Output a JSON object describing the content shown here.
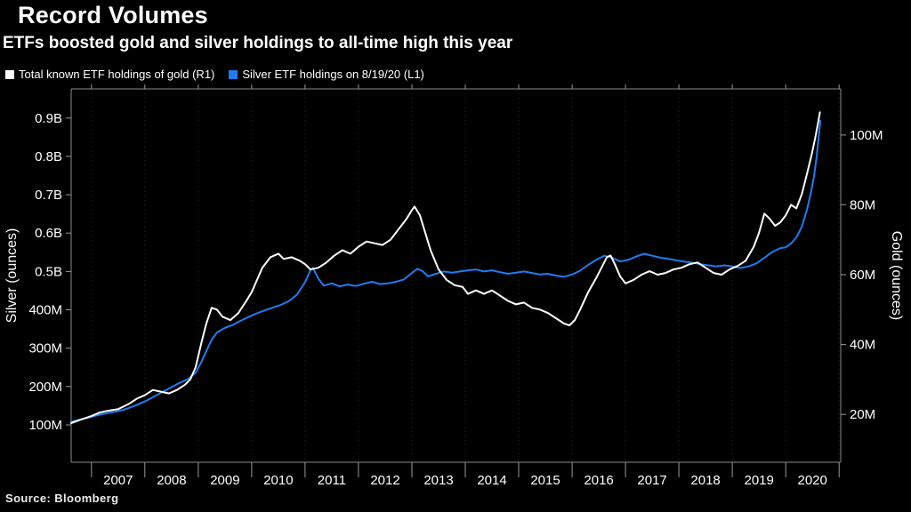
{
  "header": {
    "title": "Record Volumes",
    "subtitle": "ETFs boosted gold and silver holdings to all-time high this year"
  },
  "legend": {
    "items": [
      {
        "label": "Total known ETF holdings of gold (R1)",
        "color": "#ffffff"
      },
      {
        "label": "Silver ETF holdings on 8/19/20 (L1)",
        "color": "#1f7cf0"
      }
    ]
  },
  "footer": {
    "source": "Source: Bloomberg"
  },
  "colors": {
    "background": "#000000",
    "gold_line": "#ffffff",
    "silver_line": "#1f7cf0",
    "axis": "#8a8a8a"
  },
  "chart_data": {
    "type": "line",
    "title": "Record Volumes",
    "subtitle": "ETFs boosted gold and silver holdings to all-time high this year",
    "legend_position": "top-left",
    "grid": {
      "vertical": "dotted",
      "horizontal": "none"
    },
    "x_range": [
      2006.62,
      2021.03
    ],
    "x_axis": {
      "tick_years": [
        2007,
        2008,
        2009,
        2010,
        2011,
        2012,
        2013,
        2014,
        2015,
        2016,
        2017,
        2018,
        2019,
        2020,
        2021
      ],
      "labels": [
        "2007",
        "2008",
        "2009",
        "2010",
        "2011",
        "2012",
        "2013",
        "2014",
        "2015",
        "2016",
        "2017",
        "2018",
        "2019",
        "2020"
      ]
    },
    "left_axis": {
      "label": "Silver (ounces)",
      "unit": "million ounces of silver",
      "domain": [
        2.6,
        976
      ],
      "ticks": [
        {
          "value": 100,
          "label": "100M"
        },
        {
          "value": 200,
          "label": "200M"
        },
        {
          "value": 300,
          "label": "300M"
        },
        {
          "value": 400,
          "label": "400M"
        },
        {
          "value": 500,
          "label": "0.5B"
        },
        {
          "value": 600,
          "label": "0.6B"
        },
        {
          "value": 700,
          "label": "0.7B"
        },
        {
          "value": 800,
          "label": "0.8B"
        },
        {
          "value": 900,
          "label": "0.9B"
        }
      ]
    },
    "right_axis": {
      "label": "Gold (ounces)",
      "unit": "million ounces of gold",
      "domain": [
        6.3,
        113.2
      ],
      "ticks": [
        {
          "value": 20,
          "label": "20M"
        },
        {
          "value": 40,
          "label": "40M"
        },
        {
          "value": 60,
          "label": "60M"
        },
        {
          "value": 80,
          "label": "80M"
        },
        {
          "value": 100,
          "label": "100M"
        }
      ]
    },
    "series": [
      {
        "name": "Total known ETF holdings of gold (R1)",
        "axis": "right",
        "color": "#ffffff",
        "points": [
          [
            2006.62,
            17.5
          ],
          [
            2006.8,
            18.5
          ],
          [
            2007.0,
            19.5
          ],
          [
            2007.15,
            20.5
          ],
          [
            2007.3,
            21
          ],
          [
            2007.5,
            21.5
          ],
          [
            2007.7,
            23
          ],
          [
            2007.85,
            24.5
          ],
          [
            2008.0,
            25.5
          ],
          [
            2008.15,
            27
          ],
          [
            2008.3,
            26.5
          ],
          [
            2008.45,
            26
          ],
          [
            2008.6,
            27
          ],
          [
            2008.75,
            28.5
          ],
          [
            2008.85,
            30
          ],
          [
            2008.95,
            33.5
          ],
          [
            2009.05,
            40
          ],
          [
            2009.15,
            46
          ],
          [
            2009.25,
            50.5
          ],
          [
            2009.35,
            50
          ],
          [
            2009.45,
            48
          ],
          [
            2009.6,
            47
          ],
          [
            2009.75,
            49
          ],
          [
            2009.9,
            52.5
          ],
          [
            2010.0,
            55
          ],
          [
            2010.1,
            58.5
          ],
          [
            2010.2,
            62
          ],
          [
            2010.35,
            65
          ],
          [
            2010.5,
            66
          ],
          [
            2010.6,
            64.5
          ],
          [
            2010.75,
            65
          ],
          [
            2010.9,
            64
          ],
          [
            2011.0,
            63
          ],
          [
            2011.1,
            61.5
          ],
          [
            2011.25,
            62
          ],
          [
            2011.4,
            63.5
          ],
          [
            2011.55,
            65.5
          ],
          [
            2011.7,
            67
          ],
          [
            2011.85,
            66
          ],
          [
            2012.0,
            68
          ],
          [
            2012.15,
            69.5
          ],
          [
            2012.3,
            69
          ],
          [
            2012.45,
            68.5
          ],
          [
            2012.6,
            70
          ],
          [
            2012.75,
            73
          ],
          [
            2012.9,
            76
          ],
          [
            2013.0,
            78.5
          ],
          [
            2013.05,
            79.5
          ],
          [
            2013.15,
            77
          ],
          [
            2013.25,
            72
          ],
          [
            2013.35,
            67
          ],
          [
            2013.5,
            61.5
          ],
          [
            2013.65,
            58.5
          ],
          [
            2013.8,
            57
          ],
          [
            2013.95,
            56.5
          ],
          [
            2014.05,
            54.5
          ],
          [
            2014.2,
            55.5
          ],
          [
            2014.35,
            54.5
          ],
          [
            2014.5,
            55.5
          ],
          [
            2014.65,
            54
          ],
          [
            2014.8,
            52.5
          ],
          [
            2014.95,
            51.5
          ],
          [
            2015.1,
            52
          ],
          [
            2015.25,
            50.5
          ],
          [
            2015.4,
            50
          ],
          [
            2015.55,
            49
          ],
          [
            2015.7,
            47.5
          ],
          [
            2015.85,
            46
          ],
          [
            2015.95,
            45.5
          ],
          [
            2016.05,
            47
          ],
          [
            2016.15,
            50
          ],
          [
            2016.3,
            55
          ],
          [
            2016.45,
            59
          ],
          [
            2016.55,
            62
          ],
          [
            2016.65,
            65
          ],
          [
            2016.72,
            65.5
          ],
          [
            2016.8,
            63
          ],
          [
            2016.9,
            59.5
          ],
          [
            2017.0,
            57.5
          ],
          [
            2017.15,
            58.5
          ],
          [
            2017.3,
            60
          ],
          [
            2017.45,
            61
          ],
          [
            2017.6,
            60
          ],
          [
            2017.75,
            60.5
          ],
          [
            2017.9,
            61.5
          ],
          [
            2018.05,
            62
          ],
          [
            2018.2,
            63
          ],
          [
            2018.35,
            63.5
          ],
          [
            2018.5,
            62
          ],
          [
            2018.65,
            60.5
          ],
          [
            2018.8,
            60
          ],
          [
            2018.95,
            61.5
          ],
          [
            2019.1,
            62.5
          ],
          [
            2019.25,
            64
          ],
          [
            2019.4,
            68
          ],
          [
            2019.5,
            72
          ],
          [
            2019.6,
            77.5
          ],
          [
            2019.7,
            76
          ],
          [
            2019.8,
            74
          ],
          [
            2019.9,
            75
          ],
          [
            2020.0,
            77
          ],
          [
            2020.1,
            80
          ],
          [
            2020.2,
            79
          ],
          [
            2020.3,
            83
          ],
          [
            2020.4,
            89
          ],
          [
            2020.48,
            94
          ],
          [
            2020.55,
            99
          ],
          [
            2020.6,
            103
          ],
          [
            2020.64,
            106.5
          ]
        ]
      },
      {
        "name": "Silver ETF holdings on 8/19/20 (L1)",
        "axis": "left",
        "color": "#1f7cf0",
        "points": [
          [
            2006.62,
            108
          ],
          [
            2006.8,
            114
          ],
          [
            2007.0,
            121
          ],
          [
            2007.2,
            128
          ],
          [
            2007.4,
            133
          ],
          [
            2007.6,
            139
          ],
          [
            2007.8,
            149
          ],
          [
            2008.0,
            161
          ],
          [
            2008.2,
            176
          ],
          [
            2008.4,
            191
          ],
          [
            2008.6,
            206
          ],
          [
            2008.8,
            219
          ],
          [
            2008.95,
            236
          ],
          [
            2009.05,
            262
          ],
          [
            2009.15,
            292
          ],
          [
            2009.25,
            322
          ],
          [
            2009.35,
            341
          ],
          [
            2009.5,
            353
          ],
          [
            2009.65,
            361
          ],
          [
            2009.8,
            372
          ],
          [
            2009.95,
            382
          ],
          [
            2010.1,
            391
          ],
          [
            2010.25,
            399
          ],
          [
            2010.4,
            406
          ],
          [
            2010.55,
            413
          ],
          [
            2010.7,
            423
          ],
          [
            2010.85,
            440
          ],
          [
            2011.0,
            472
          ],
          [
            2011.1,
            503
          ],
          [
            2011.15,
            509
          ],
          [
            2011.25,
            481
          ],
          [
            2011.35,
            463
          ],
          [
            2011.5,
            469
          ],
          [
            2011.65,
            461
          ],
          [
            2011.8,
            466
          ],
          [
            2011.95,
            462
          ],
          [
            2012.1,
            468
          ],
          [
            2012.25,
            473
          ],
          [
            2012.4,
            467
          ],
          [
            2012.55,
            469
          ],
          [
            2012.7,
            473
          ],
          [
            2012.85,
            479
          ],
          [
            2013.0,
            496
          ],
          [
            2013.1,
            507
          ],
          [
            2013.2,
            501
          ],
          [
            2013.3,
            487
          ],
          [
            2013.45,
            494
          ],
          [
            2013.6,
            500
          ],
          [
            2013.75,
            497
          ],
          [
            2013.9,
            500
          ],
          [
            2014.05,
            503
          ],
          [
            2014.2,
            505
          ],
          [
            2014.35,
            500
          ],
          [
            2014.5,
            503
          ],
          [
            2014.65,
            498
          ],
          [
            2014.8,
            494
          ],
          [
            2014.95,
            497
          ],
          [
            2015.1,
            500
          ],
          [
            2015.25,
            496
          ],
          [
            2015.4,
            492
          ],
          [
            2015.55,
            494
          ],
          [
            2015.7,
            489
          ],
          [
            2015.85,
            486
          ],
          [
            2016.0,
            492
          ],
          [
            2016.15,
            502
          ],
          [
            2016.3,
            517
          ],
          [
            2016.45,
            530
          ],
          [
            2016.6,
            541
          ],
          [
            2016.75,
            536
          ],
          [
            2016.9,
            526
          ],
          [
            2017.05,
            530
          ],
          [
            2017.2,
            539
          ],
          [
            2017.35,
            546
          ],
          [
            2017.5,
            541
          ],
          [
            2017.65,
            536
          ],
          [
            2017.8,
            533
          ],
          [
            2017.95,
            529
          ],
          [
            2018.1,
            526
          ],
          [
            2018.25,
            523
          ],
          [
            2018.4,
            519
          ],
          [
            2018.55,
            516
          ],
          [
            2018.7,
            513
          ],
          [
            2018.85,
            516
          ],
          [
            2019.0,
            513
          ],
          [
            2019.15,
            509
          ],
          [
            2019.3,
            513
          ],
          [
            2019.45,
            521
          ],
          [
            2019.6,
            536
          ],
          [
            2019.75,
            551
          ],
          [
            2019.9,
            561
          ],
          [
            2020.0,
            563
          ],
          [
            2020.1,
            573
          ],
          [
            2020.2,
            589
          ],
          [
            2020.3,
            616
          ],
          [
            2020.4,
            662
          ],
          [
            2020.47,
            705
          ],
          [
            2020.53,
            748
          ],
          [
            2020.58,
            800
          ],
          [
            2020.62,
            855
          ],
          [
            2020.65,
            893
          ]
        ]
      }
    ]
  }
}
